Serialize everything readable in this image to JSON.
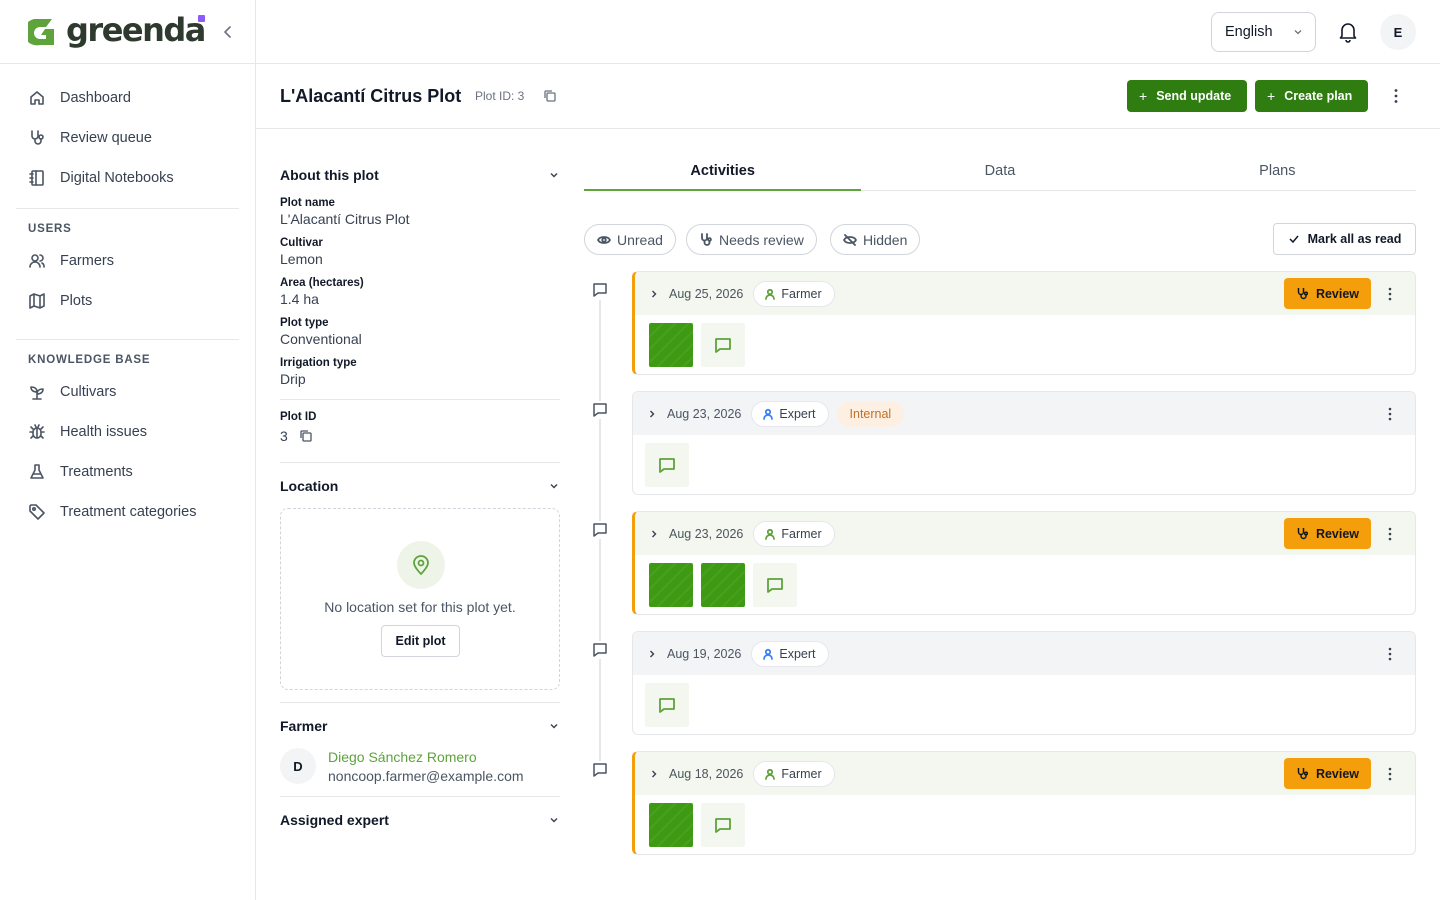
{
  "brand": {
    "name": "greenda",
    "accent": "#5ea33c",
    "dot_color": "#8b5cf6"
  },
  "sidebar": {
    "main_items": [
      {
        "label": "Dashboard",
        "icon": "home-icon"
      },
      {
        "label": "Review queue",
        "icon": "stethoscope-icon"
      },
      {
        "label": "Digital Notebooks",
        "icon": "notebook-icon"
      }
    ],
    "users_heading": "USERS",
    "users_items": [
      {
        "label": "Farmers",
        "icon": "users-icon"
      },
      {
        "label": "Plots",
        "icon": "map-icon"
      }
    ],
    "kb_heading": "KNOWLEDGE BASE",
    "kb_items": [
      {
        "label": "Cultivars",
        "icon": "sprout-icon"
      },
      {
        "label": "Health issues",
        "icon": "bug-icon"
      },
      {
        "label": "Treatments",
        "icon": "flask-icon"
      },
      {
        "label": "Treatment categories",
        "icon": "tag-icon"
      }
    ]
  },
  "topbar": {
    "language": "English",
    "avatar_initial": "E"
  },
  "header": {
    "title": "L'Alacantí Citrus Plot",
    "plot_id_label": "Plot ID: 3",
    "send_update": "Send update",
    "create_plan": "Create plan"
  },
  "about": {
    "heading": "About this plot",
    "fields": [
      {
        "label": "Plot name",
        "value": "L'Alacantí Citrus Plot"
      },
      {
        "label": "Cultivar",
        "value": "Lemon"
      },
      {
        "label": "Area (hectares)",
        "value": "1.4 ha"
      },
      {
        "label": "Plot type",
        "value": "Conventional"
      },
      {
        "label": "Irrigation type",
        "value": "Drip"
      }
    ],
    "plot_id_label": "Plot ID",
    "plot_id_value": "3"
  },
  "location": {
    "heading": "Location",
    "empty_text": "No location set for this plot yet.",
    "edit_button": "Edit plot"
  },
  "farmer": {
    "heading": "Farmer",
    "initial": "D",
    "name": "Diego Sánchez Romero",
    "email": "noncoop.farmer@example.com"
  },
  "assigned_expert": {
    "heading": "Assigned expert"
  },
  "tabs": [
    "Activities",
    "Data",
    "Plans"
  ],
  "filters": {
    "unread": "Unread",
    "needs_review": "Needs review",
    "hidden": "Hidden",
    "mark_all_read": "Mark all as read"
  },
  "activities": [
    {
      "date": "Aug 25, 2026",
      "role": "Farmer",
      "review": "Review",
      "photos": 1
    },
    {
      "date": "Aug 23, 2026",
      "role": "Expert",
      "internal": "Internal",
      "photos": 0
    },
    {
      "date": "Aug 23, 2026",
      "role": "Farmer",
      "review": "Review",
      "photos": 2
    },
    {
      "date": "Aug 19, 2026",
      "role": "Expert",
      "photos": 0
    },
    {
      "date": "Aug 18, 2026",
      "role": "Farmer",
      "review": "Review",
      "photos": 1
    }
  ],
  "colors": {
    "primary_button": "#2f7d10",
    "review_button": "#f59e0b",
    "farmer_role_icon": "#5ea33c",
    "expert_role_icon": "#3b82f6",
    "internal_chip_bg": "#fdf0e3",
    "internal_chip_text": "#c0702a"
  }
}
